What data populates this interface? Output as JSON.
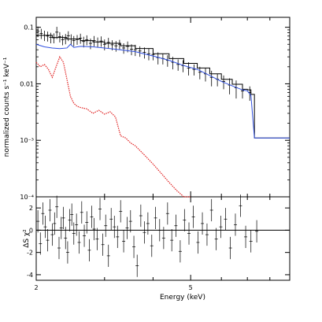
{
  "chart_data": [
    {
      "type": "line",
      "panel": "spectrum",
      "title": "",
      "xlabel": "",
      "ylabel": "normalized counts s⁻¹ keV⁻¹",
      "xscale": "log",
      "yscale": "log",
      "xlim": [
        2,
        9.0
      ],
      "ylim": [
        0.0001,
        0.15
      ],
      "ytick_labels": [
        "0.1",
        "0.01",
        "10⁻³",
        "10⁻⁴"
      ],
      "ytick_values": [
        0.1,
        0.01,
        0.001,
        0.0001
      ],
      "grid": false,
      "legend": "none",
      "series": [
        {
          "color": "#000000",
          "style": "data-with-errorbars",
          "x": [
            2.02,
            2.06,
            2.1,
            2.14,
            2.18,
            2.22,
            2.26,
            2.3,
            2.34,
            2.38,
            2.42,
            2.46,
            2.5,
            2.55,
            2.6,
            2.65,
            2.7,
            2.76,
            2.82,
            2.88,
            2.94,
            3.0,
            3.07,
            3.14,
            3.21,
            3.28,
            3.36,
            3.44,
            3.52,
            3.6,
            3.7,
            3.8,
            3.9,
            4.0,
            4.12,
            4.24,
            4.36,
            4.5,
            4.64,
            4.78,
            4.94,
            5.1,
            5.28,
            5.46,
            5.66,
            5.86,
            6.08,
            6.3,
            6.55,
            6.8,
            7.1
          ],
          "y": [
            0.085,
            0.078,
            0.072,
            0.07,
            0.066,
            0.065,
            0.082,
            0.068,
            0.06,
            0.063,
            0.071,
            0.062,
            0.058,
            0.061,
            0.064,
            0.056,
            0.06,
            0.052,
            0.058,
            0.055,
            0.057,
            0.05,
            0.054,
            0.049,
            0.047,
            0.05,
            0.043,
            0.046,
            0.041,
            0.04,
            0.038,
            0.036,
            0.034,
            0.033,
            0.029,
            0.028,
            0.026,
            0.024,
            0.022,
            0.021,
            0.019,
            0.018,
            0.016,
            0.015,
            0.013,
            0.012,
            0.011,
            0.0095,
            0.0085,
            0.0075,
            0.007
          ],
          "yerr": [
            0.018,
            0.016,
            0.015,
            0.014,
            0.014,
            0.013,
            0.02,
            0.014,
            0.012,
            0.013,
            0.014,
            0.013,
            0.012,
            0.012,
            0.013,
            0.012,
            0.012,
            0.011,
            0.012,
            0.011,
            0.012,
            0.011,
            0.011,
            0.01,
            0.01,
            0.01,
            0.009,
            0.01,
            0.009,
            0.009,
            0.008,
            0.008,
            0.008,
            0.007,
            0.007,
            0.006,
            0.006,
            0.006,
            0.005,
            0.005,
            0.005,
            0.004,
            0.004,
            0.004,
            0.004,
            0.003,
            0.003,
            0.003,
            0.003,
            0.002,
            0.002
          ]
        },
        {
          "color": "#000000",
          "style": "model-step",
          "x": [
            2.0,
            2.2,
            2.4,
            2.6,
            2.8,
            3.0,
            3.3,
            3.6,
            4.0,
            4.4,
            4.8,
            5.2,
            5.6,
            6.0,
            6.4,
            6.8,
            7.0,
            7.15,
            7.3,
            9.0
          ],
          "y": [
            0.072,
            0.066,
            0.062,
            0.058,
            0.055,
            0.052,
            0.047,
            0.042,
            0.034,
            0.028,
            0.023,
            0.019,
            0.015,
            0.012,
            0.0098,
            0.008,
            0.0078,
            0.0065,
            0.0011,
            0.0011
          ]
        },
        {
          "color": "#3050e0",
          "style": "model-line",
          "x": [
            2.0,
            2.1,
            2.2,
            2.3,
            2.4,
            2.45,
            2.5,
            2.6,
            2.8,
            3.0,
            3.3,
            3.6,
            4.0,
            4.4,
            4.8,
            5.2,
            5.6,
            6.0,
            6.4,
            6.8,
            7.0,
            7.15,
            7.3,
            9.0
          ],
          "y": [
            0.05,
            0.045,
            0.043,
            0.042,
            0.043,
            0.05,
            0.044,
            0.046,
            0.045,
            0.043,
            0.04,
            0.037,
            0.031,
            0.026,
            0.021,
            0.018,
            0.014,
            0.011,
            0.0092,
            0.0078,
            0.0075,
            0.0062,
            0.0011,
            0.0011
          ]
        },
        {
          "color": "#e02020",
          "style": "model-dotted",
          "x": [
            2.0,
            2.05,
            2.1,
            2.15,
            2.2,
            2.25,
            2.3,
            2.35,
            2.4,
            2.45,
            2.5,
            2.55,
            2.6,
            2.7,
            2.8,
            2.9,
            3.0,
            3.1,
            3.2,
            3.3,
            3.4,
            3.5,
            3.6,
            3.8,
            4.0,
            4.2,
            4.4,
            4.6,
            4.8,
            5.0
          ],
          "y": [
            0.024,
            0.02,
            0.022,
            0.018,
            0.013,
            0.02,
            0.03,
            0.024,
            0.012,
            0.006,
            0.0045,
            0.004,
            0.0038,
            0.0036,
            0.003,
            0.0034,
            0.0029,
            0.0032,
            0.0026,
            0.0012,
            0.0011,
            0.0009,
            0.0008,
            0.00055,
            0.00038,
            0.00026,
            0.00018,
            0.00013,
            0.0001,
            8e-05
          ]
        }
      ]
    },
    {
      "type": "scatter",
      "panel": "residuals",
      "title": "",
      "xlabel": "Energy (keV)",
      "ylabel": "ΔS χ²",
      "xscale": "log",
      "xlim": [
        2,
        9.0
      ],
      "ylim": [
        -4.5,
        3
      ],
      "xtick_labels": [
        "2",
        "5"
      ],
      "xtick_values": [
        2,
        5
      ],
      "ytick_labels": [
        "2",
        "0",
        "-2",
        "-4"
      ],
      "ytick_values": [
        2,
        0,
        -2,
        -4
      ],
      "grid": false,
      "legend": "none",
      "series": [
        {
          "color": "#000000",
          "style": "residuals-with-errorbars",
          "x": [
            2.02,
            2.05,
            2.08,
            2.11,
            2.14,
            2.17,
            2.2,
            2.23,
            2.26,
            2.29,
            2.32,
            2.35,
            2.38,
            2.41,
            2.44,
            2.47,
            2.5,
            2.54,
            2.58,
            2.62,
            2.66,
            2.7,
            2.74,
            2.78,
            2.82,
            2.87,
            2.92,
            2.97,
            3.02,
            3.07,
            3.12,
            3.18,
            3.24,
            3.3,
            3.36,
            3.43,
            3.5,
            3.57,
            3.64,
            3.72,
            3.8,
            3.88,
            3.97,
            4.06,
            4.16,
            4.26,
            4.36,
            4.47,
            4.58,
            4.7,
            4.82,
            4.95,
            5.08,
            5.22,
            5.36,
            5.51,
            5.66,
            5.82,
            5.98,
            6.15,
            6.33,
            6.52,
            6.72,
            6.93,
            7.15,
            7.4
          ],
          "y": [
            0.8,
            -1.2,
            1.5,
            0.3,
            -0.9,
            1.8,
            -0.4,
            0.6,
            2.1,
            -1.6,
            0.2,
            1.1,
            -0.7,
            -2.0,
            0.9,
            1.4,
            -0.3,
            0.5,
            -1.1,
            1.6,
            -0.5,
            0.7,
            -1.8,
            1.2,
            0.1,
            -0.8,
            1.9,
            -1.3,
            0.4,
            -2.3,
            1.0,
            0.3,
            -0.6,
            1.7,
            -1.0,
            0.2,
            0.8,
            -1.5,
            -3.2,
            1.3,
            -0.2,
            0.6,
            -1.4,
            1.1,
            0.0,
            -0.7,
            1.5,
            -0.9,
            0.4,
            -1.9,
            0.9,
            -0.3,
            1.2,
            -1.1,
            0.6,
            -0.4,
            1.8,
            -0.8,
            0.3,
            1.0,
            -1.6,
            0.5,
            2.2,
            -0.6,
            -1.0,
            -0.1
          ],
          "yerr": [
            1,
            1,
            1,
            1,
            1,
            1,
            1,
            1,
            1,
            1,
            1,
            1,
            1,
            1,
            1,
            1,
            1,
            1,
            1,
            1,
            1,
            1,
            1,
            1,
            1,
            1,
            1,
            1,
            1,
            1,
            1,
            1,
            1,
            1,
            1,
            1,
            1,
            1,
            1,
            1,
            1,
            1,
            1,
            1,
            1,
            1,
            1,
            1,
            1,
            1,
            1,
            1,
            1,
            1,
            1,
            1,
            1,
            1,
            1,
            1,
            1,
            1,
            1,
            1,
            1,
            1
          ]
        }
      ],
      "reference_lines": [
        {
          "y": 0,
          "color": "#000000",
          "style": "solid"
        }
      ]
    }
  ]
}
